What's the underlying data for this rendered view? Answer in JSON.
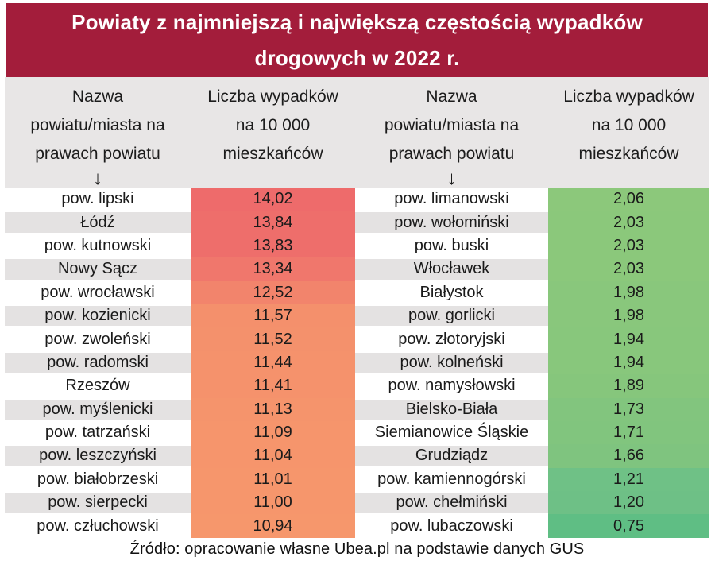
{
  "title_lines": [
    "Powiaty z najmniejszą i największą częstością wypadków",
    "drogowych w 2022 r."
  ],
  "column_headers": {
    "name_lines": [
      "Nazwa",
      "powiatu/miasta na",
      "prawach powiatu"
    ],
    "value_lines": [
      "Liczba wypadków",
      "na 10 000",
      "mieszkańców"
    ],
    "sort_arrow": "↓"
  },
  "footer": "Źródło: opracowanie własne Ubea.pl na podstawie danych GUS",
  "colors": {
    "banner_bg": "#A31D3B",
    "banner_text": "#FFFFFF",
    "header_bg": "#E8E6E6",
    "row_alt_bg": "#E4E2E2"
  },
  "chart_data": {
    "type": "table",
    "title": "Powiaty z najmniejszą i największą częstością wypadków drogowych w 2022 r.",
    "columns": [
      "Nazwa powiatu/miasta na prawach powiatu",
      "Liczba wypadków na 10 000 mieszkańców"
    ],
    "source": "Źródło: opracowanie własne Ubea.pl na podstawie danych GUS",
    "tables": [
      {
        "id": "najwieksza-czestosc",
        "rows": [
          {
            "name": "pow. lipski",
            "value": "14,02",
            "value_numeric": 14.02,
            "color": "#EE6B6B"
          },
          {
            "name": "Łódź",
            "value": "13,84",
            "value_numeric": 13.84,
            "color": "#EE6E6B"
          },
          {
            "name": "pow. kutnowski",
            "value": "13,83",
            "value_numeric": 13.83,
            "color": "#EE6E6B"
          },
          {
            "name": "Nowy Sącz",
            "value": "13,34",
            "value_numeric": 13.34,
            "color": "#F0776C"
          },
          {
            "name": "pow. wrocławski",
            "value": "12,52",
            "value_numeric": 12.52,
            "color": "#F2846C"
          },
          {
            "name": "pow. kozienicki",
            "value": "11,57",
            "value_numeric": 11.57,
            "color": "#F4906C"
          },
          {
            "name": "pow. zwoleński",
            "value": "11,52",
            "value_numeric": 11.52,
            "color": "#F4916C"
          },
          {
            "name": "pow. radomski",
            "value": "11,44",
            "value_numeric": 11.44,
            "color": "#F5926C"
          },
          {
            "name": "Rzeszów",
            "value": "11,41",
            "value_numeric": 11.41,
            "color": "#F5926C"
          },
          {
            "name": "pow. myślenicki",
            "value": "11,13",
            "value_numeric": 11.13,
            "color": "#F5946C"
          },
          {
            "name": "pow. tatrzański",
            "value": "11,09",
            "value_numeric": 11.09,
            "color": "#F6956C"
          },
          {
            "name": "pow. leszczyński",
            "value": "11,04",
            "value_numeric": 11.04,
            "color": "#F6956C"
          },
          {
            "name": "pow. białobrzeski",
            "value": "11,01",
            "value_numeric": 11.01,
            "color": "#F6966C"
          },
          {
            "name": "pow. sierpecki",
            "value": "11,00",
            "value_numeric": 11.0,
            "color": "#F6966C"
          },
          {
            "name": "pow. człuchowski",
            "value": "10,94",
            "value_numeric": 10.94,
            "color": "#F6976C"
          }
        ]
      },
      {
        "id": "najmniejsza-czestosc",
        "rows": [
          {
            "name": "pow. limanowski",
            "value": "2,06",
            "value_numeric": 2.06,
            "color": "#8CC87B"
          },
          {
            "name": "pow. wołomiński",
            "value": "2,03",
            "value_numeric": 2.03,
            "color": "#8BC87B"
          },
          {
            "name": "pow. buski",
            "value": "2,03",
            "value_numeric": 2.03,
            "color": "#8BC87B"
          },
          {
            "name": "Włocławek",
            "value": "2,03",
            "value_numeric": 2.03,
            "color": "#8BC87B"
          },
          {
            "name": "Białystok",
            "value": "1,98",
            "value_numeric": 1.98,
            "color": "#89C77C"
          },
          {
            "name": "pow. gorlicki",
            "value": "1,98",
            "value_numeric": 1.98,
            "color": "#89C77C"
          },
          {
            "name": "pow. złotoryjski",
            "value": "1,94",
            "value_numeric": 1.94,
            "color": "#88C77C"
          },
          {
            "name": "pow. kolneński",
            "value": "1,94",
            "value_numeric": 1.94,
            "color": "#88C77C"
          },
          {
            "name": "pow. namysłowski",
            "value": "1,89",
            "value_numeric": 1.89,
            "color": "#86C67C"
          },
          {
            "name": "Bielsko-Biała",
            "value": "1,73",
            "value_numeric": 1.73,
            "color": "#82C57E"
          },
          {
            "name": "Siemianowice Śląskie",
            "value": "1,71",
            "value_numeric": 1.71,
            "color": "#81C57E"
          },
          {
            "name": "Grudziądz",
            "value": "1,66",
            "value_numeric": 1.66,
            "color": "#7FC47F"
          },
          {
            "name": "pow. kamiennogórski",
            "value": "1,21",
            "value_numeric": 1.21,
            "color": "#6FC186"
          },
          {
            "name": "pow. chełmiński",
            "value": "1,20",
            "value_numeric": 1.2,
            "color": "#6EC086"
          },
          {
            "name": "pow. lubaczowski",
            "value": "0,75",
            "value_numeric": 0.75,
            "color": "#5FBE84"
          }
        ]
      }
    ]
  }
}
